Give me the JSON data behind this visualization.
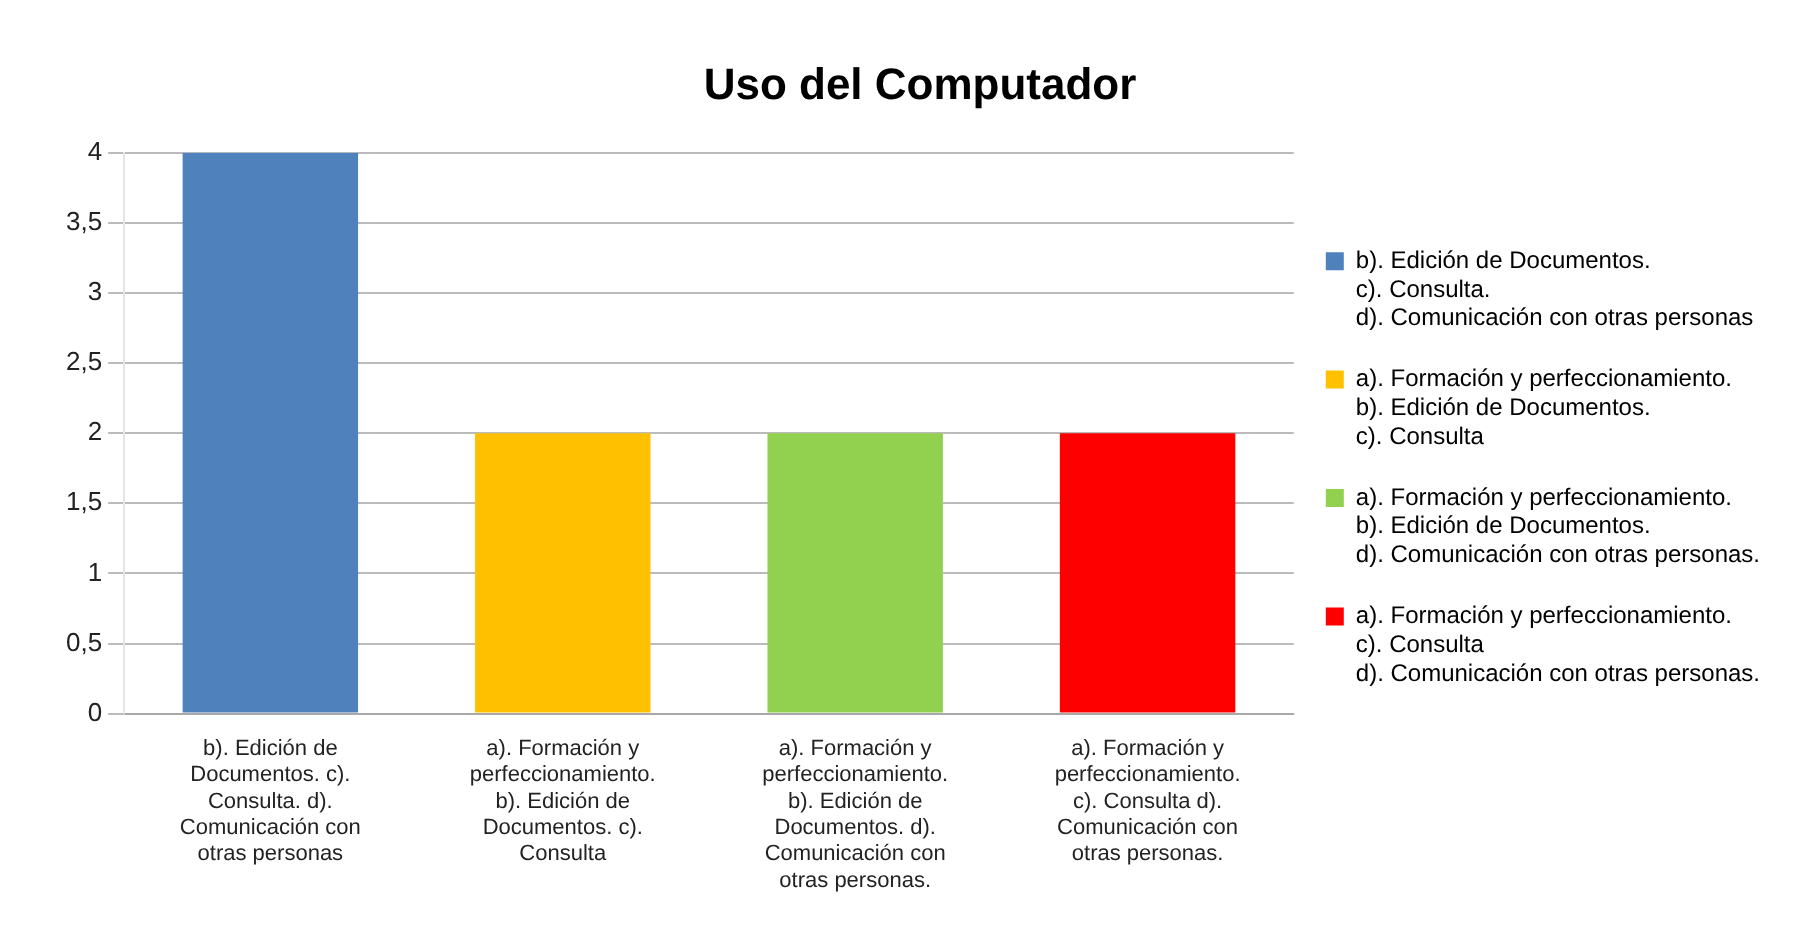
{
  "chart_data": {
    "type": "bar",
    "title": "Uso del Computador",
    "categories": [
      "b). Edición de Documentos.\nc). Consulta.\nd). Comunicación con otras personas",
      "a). Formación y perfeccionamiento.\nb). Edición de Documentos.\nc). Consulta",
      "a). Formación y perfeccionamiento.\nb). Edición de Documentos.\nd). Comunicación con otras personas.",
      "a). Formación y perfeccionamiento.\nc). Consulta\nd). Comunicación con otras personas."
    ],
    "series": [
      {
        "name": "b). Edición de Documentos.\nc). Consulta.\nd). Comunicación con otras personas",
        "color": "#4f81bd",
        "values": [
          4,
          null,
          null,
          null
        ]
      },
      {
        "name": "a). Formación y perfeccionamiento.\nb). Edición de Documentos.\nc). Consulta",
        "color": "#ffc000",
        "values": [
          null,
          2,
          null,
          null
        ]
      },
      {
        "name": "a). Formación y perfeccionamiento.\nb). Edición de Documentos.\nd). Comunicación con otras personas.",
        "color": "#92d050",
        "values": [
          null,
          null,
          2,
          null
        ]
      },
      {
        "name": "a). Formación y perfeccionamiento.\nc). Consulta\nd). Comunicación con otras personas.",
        "color": "#ff0000",
        "values": [
          null,
          null,
          null,
          2
        ]
      }
    ],
    "ylim": [
      0,
      4
    ],
    "yticks": [
      0,
      {
        "value": 0.5,
        "label": "0,5"
      },
      1,
      {
        "value": 1.5,
        "label": "1,5"
      },
      2,
      {
        "value": 2.5,
        "label": "2,5"
      },
      3,
      {
        "value": 3.5,
        "label": "3,5"
      },
      4
    ],
    "grid": "y",
    "legend": "right"
  }
}
